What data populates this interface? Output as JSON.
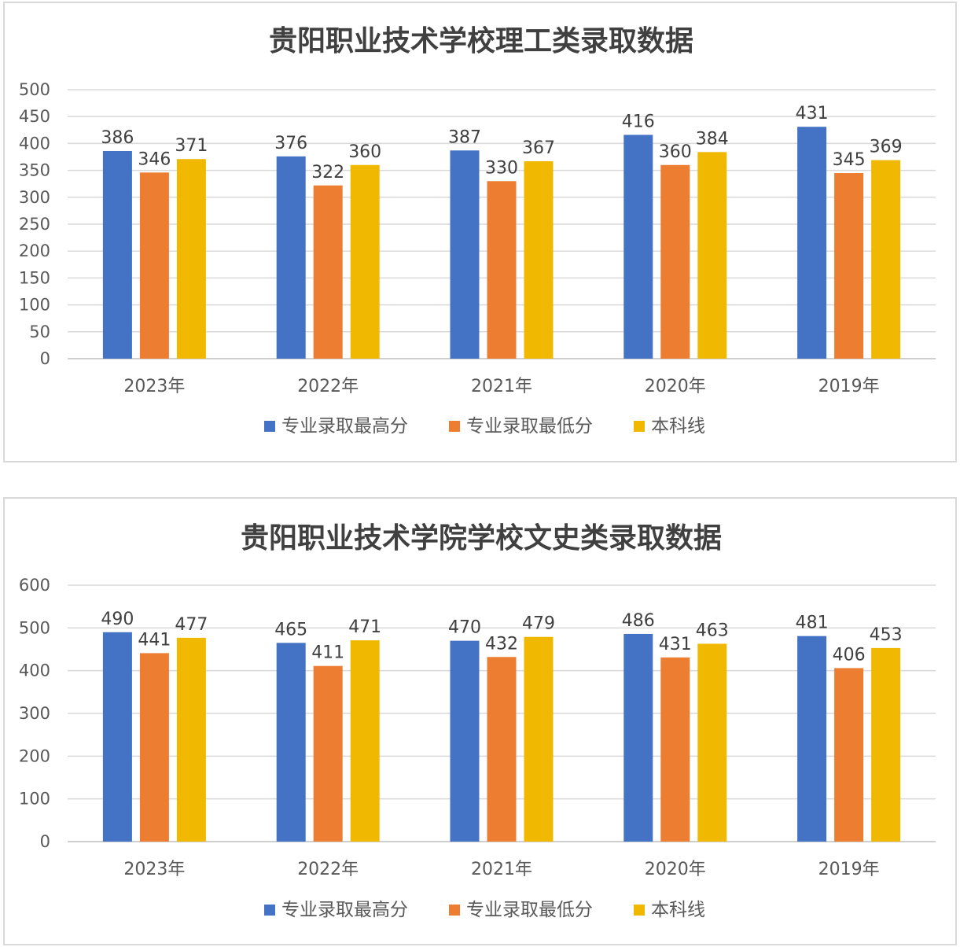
{
  "chart_data": [
    {
      "type": "bar",
      "title": "贵阳职业技术学校理工类录取数据",
      "categories": [
        "2023年",
        "2022年",
        "2021年",
        "2020年",
        "2019年"
      ],
      "series": [
        {
          "name": "专业录取最高分",
          "color": "#4472c4",
          "values": [
            386,
            376,
            387,
            416,
            431
          ]
        },
        {
          "name": "专业录取最低分",
          "color": "#ed7d31",
          "values": [
            346,
            322,
            330,
            360,
            345
          ]
        },
        {
          "name": "本科线",
          "color": "#f0b800",
          "values": [
            371,
            360,
            367,
            384,
            369
          ]
        }
      ],
      "ylim": [
        0,
        500
      ],
      "yticks": [
        "0",
        "50",
        "100",
        "150",
        "200",
        "250",
        "300",
        "350",
        "400",
        "450",
        "500"
      ],
      "grid": true,
      "legend": "bottom"
    },
    {
      "type": "bar",
      "title": "贵阳职业技术学院学校文史类录取数据",
      "categories": [
        "2023年",
        "2022年",
        "2021年",
        "2020年",
        "2019年"
      ],
      "series": [
        {
          "name": "专业录取最高分",
          "color": "#4472c4",
          "values": [
            490,
            465,
            470,
            486,
            481
          ]
        },
        {
          "name": "专业录取最低分",
          "color": "#ed7d31",
          "values": [
            441,
            411,
            432,
            431,
            406
          ]
        },
        {
          "name": "本科线",
          "color": "#f0b800",
          "values": [
            477,
            471,
            479,
            463,
            453
          ]
        }
      ],
      "ylim": [
        0,
        600
      ],
      "yticks": [
        "0",
        "100",
        "200",
        "300",
        "400",
        "500",
        "600"
      ],
      "grid": true,
      "legend": "bottom"
    }
  ]
}
